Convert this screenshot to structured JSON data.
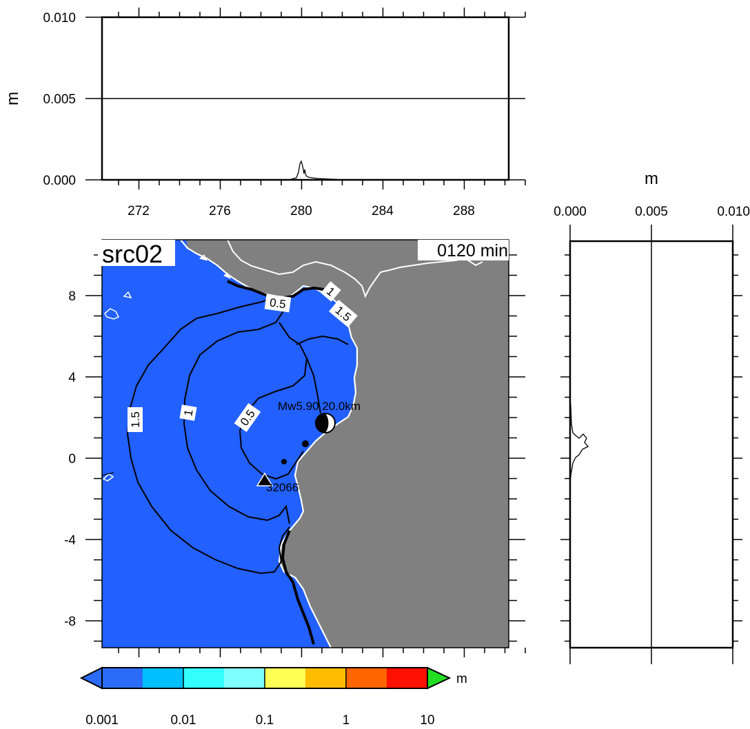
{
  "top_panel": {
    "ylabel": "m",
    "yticks": [
      "0.010",
      "0.005",
      "0.000"
    ],
    "xticks": [
      "272",
      "276",
      "280",
      "284",
      "288"
    ],
    "yrange": [
      0.0,
      0.01
    ],
    "xrange": [
      270.2,
      290.2
    ]
  },
  "side_panel": {
    "xlabel": "m",
    "xticks": [
      "0.000",
      "0.005",
      "0.010"
    ],
    "xrange": [
      0.0,
      0.01
    ]
  },
  "map": {
    "title": "src02",
    "time_label": "0120 min",
    "yticks": [
      "8",
      "4",
      "0",
      "-4",
      "-8"
    ],
    "lat_range": [
      -9.4,
      10.6
    ],
    "lon_range": [
      270.2,
      290.2
    ],
    "source_label": "Mw5.90 20.0km",
    "station_label": "32066",
    "contour_labels": [
      "0.5",
      "1",
      "1.5",
      "1.5",
      "1",
      "0.5"
    ],
    "colors": {
      "ocean": "#2260ff",
      "land": "#808080",
      "coast": "#ffffff",
      "contour": "#000000"
    }
  },
  "colorbar": {
    "unit": "m",
    "ticks": [
      "0.001",
      "0.01",
      "0.1",
      "1",
      "10"
    ],
    "colors": [
      "#2a6cf5",
      "#00bfff",
      "#33ffff",
      "#7fffff",
      "#ffff55",
      "#ffbb00",
      "#ff6600",
      "#ff1100",
      "#22dd22"
    ]
  }
}
